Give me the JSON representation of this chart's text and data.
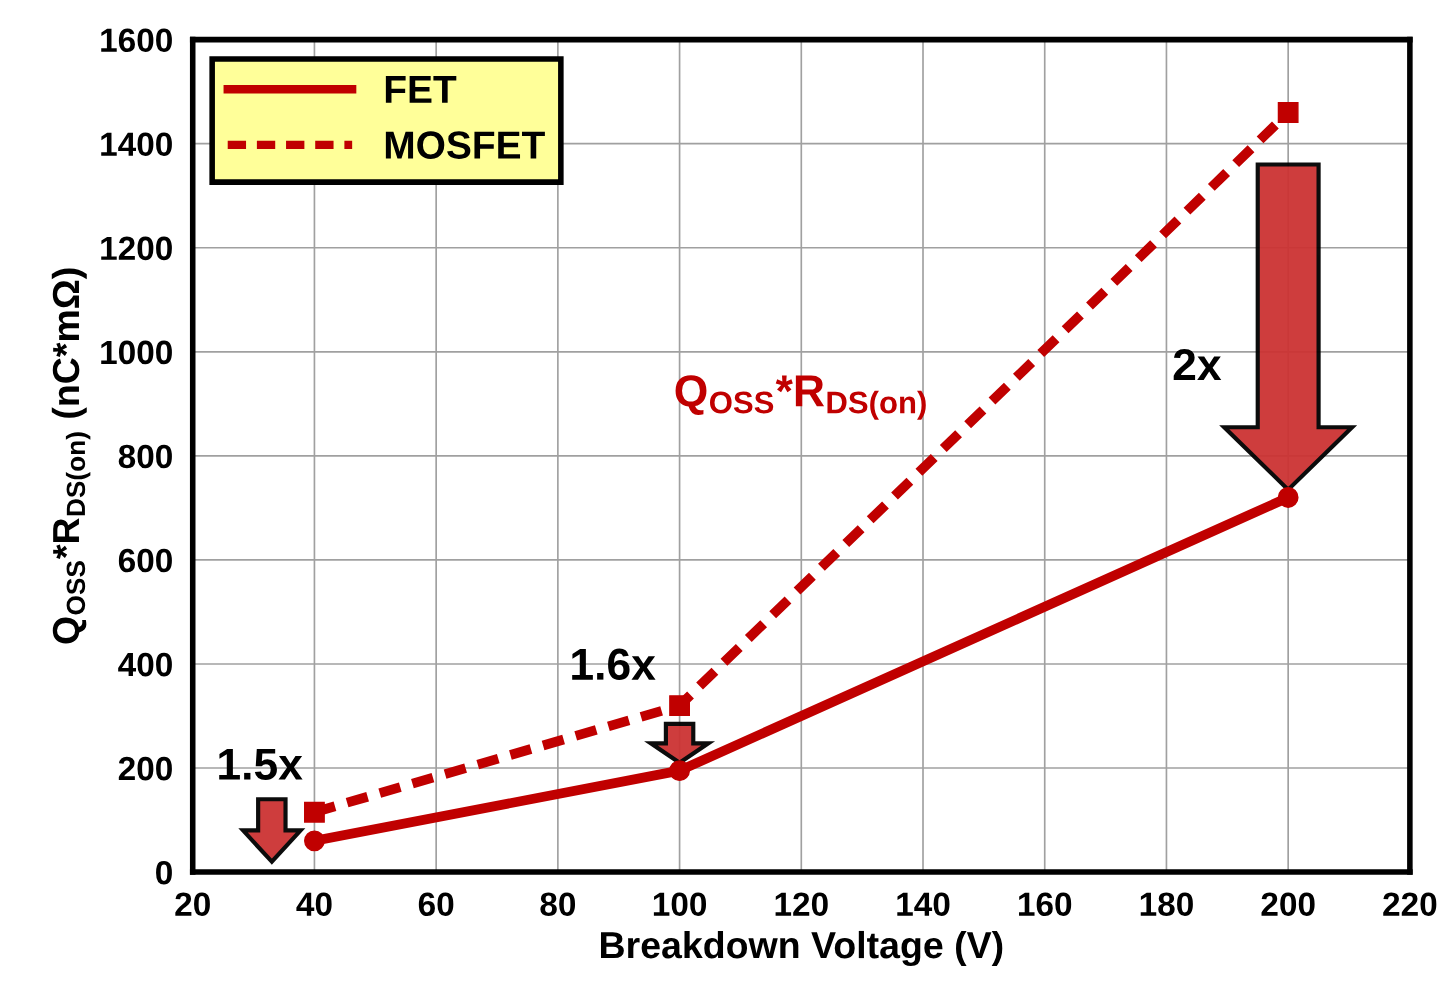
{
  "chart_data": {
    "type": "line",
    "xlabel": "Breakdown Voltage (V)",
    "ylabel": "Q$_{OSS}$*R$_{DS(on)}$ (nC*mΩ)",
    "xlim": [
      20,
      220
    ],
    "xticks": [
      20,
      40,
      60,
      80,
      100,
      120,
      140,
      160,
      180,
      200,
      220
    ],
    "ylim": [
      0,
      1600
    ],
    "yticks": [
      0,
      200,
      400,
      600,
      800,
      1000,
      1200,
      1400,
      1600
    ],
    "grid": true,
    "legend": "top left",
    "series": [
      {
        "name": "FET",
        "color": "#c00000",
        "x": [
          40,
          100,
          200
        ],
        "values": [
          60,
          195,
          720
        ],
        "marker": "circle",
        "line_style": "solid"
      },
      {
        "name": "MOSFET",
        "color": "#c00000",
        "x": [
          40,
          100,
          200
        ],
        "values": [
          115,
          320,
          1460
        ],
        "marker": "square",
        "line_style": "dashed"
      }
    ],
    "annotations": [
      "1.5x",
      "1.6x",
      "2x",
      "Q$_{OSS}$*R$_{DS(on)}$"
    ]
  }
}
